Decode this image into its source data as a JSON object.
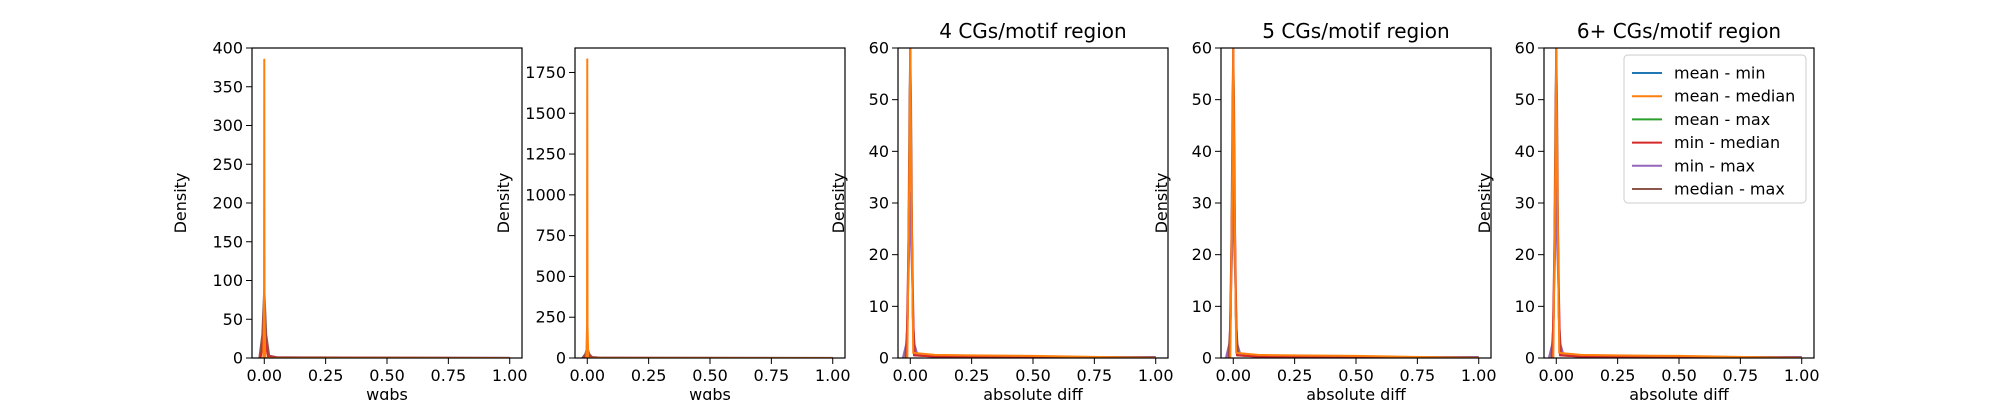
{
  "chart_data": {
    "type": "line",
    "x_ticks": [
      0.0,
      0.25,
      0.5,
      0.75,
      1.0
    ],
    "x_tick_labels": [
      "0.00",
      "0.25",
      "0.50",
      "0.75",
      "1.00"
    ],
    "ylabel": "Density",
    "legend": {
      "placement": "top-right of last panel",
      "entries": [
        "mean - min",
        "mean - median",
        "mean - max",
        "min - median",
        "min - max",
        "median - max"
      ]
    },
    "series_colors": {
      "mean - min": "#1f77b4",
      "mean - median": "#ff7f0e",
      "mean - max": "#2ca02c",
      "min - median": "#d62728",
      "min - max": "#9467bd",
      "median - max": "#8c564b"
    },
    "panels": [
      {
        "title": "",
        "xlabel": "wgbs",
        "xlim": [
          -0.05,
          1.05
        ],
        "ylim": [
          0,
          400
        ],
        "y_ticks": [
          0,
          50,
          100,
          150,
          200,
          250,
          300,
          350,
          400
        ],
        "y_tick_labels": [
          "0",
          "50",
          "100",
          "150",
          "200",
          "250",
          "300",
          "350",
          "400"
        ],
        "curves": [
          {
            "series": "min - max",
            "x": [
              -0.02,
              -0.008,
              0.0,
              0.008,
              0.02,
              0.05,
              0.2,
              0.5,
              1.0
            ],
            "y": [
              0,
              20,
              60,
              20,
              3,
              1,
              0.5,
              0.3,
              0.3
            ]
          },
          {
            "series": "median - max",
            "x": [
              -0.02,
              -0.008,
              0.0,
              0.008,
              0.02,
              0.05,
              1.0
            ],
            "y": [
              0,
              30,
              90,
              30,
              3,
              1,
              0
            ]
          },
          {
            "series": "min - median",
            "x": [
              -0.015,
              -0.005,
              0.0,
              0.005,
              0.015,
              0.05,
              1.0
            ],
            "y": [
              0,
              20,
              70,
              20,
              2,
              0.5,
              0
            ]
          },
          {
            "series": "mean - median",
            "x": [
              -0.004,
              -0.001,
              0.0,
              0.001,
              0.004,
              0.05,
              1.0
            ],
            "y": [
              0,
              60,
              385,
              60,
              0,
              0,
              0
            ]
          }
        ]
      },
      {
        "title": "",
        "xlabel": "wgbs",
        "xlim": [
          -0.05,
          1.05
        ],
        "ylim": [
          0,
          1900
        ],
        "y_ticks": [
          0,
          250,
          500,
          750,
          1000,
          1250,
          1500,
          1750
        ],
        "y_tick_labels": [
          "0",
          "250",
          "500",
          "750",
          "1000",
          "1250",
          "1500",
          "1750"
        ],
        "curves": [
          {
            "series": "min - max",
            "x": [
              -0.02,
              -0.008,
              0.0,
              0.008,
              0.02,
              0.05,
              0.2,
              0.5,
              1.0
            ],
            "y": [
              0,
              20,
              50,
              20,
              5,
              2,
              1,
              0.5,
              0.5
            ]
          },
          {
            "series": "median - max",
            "x": [
              -0.02,
              -0.008,
              0.0,
              0.008,
              0.02,
              0.05,
              1.0
            ],
            "y": [
              0,
              25,
              65,
              25,
              5,
              2,
              0
            ]
          },
          {
            "series": "min - median",
            "x": [
              -0.015,
              -0.005,
              0.0,
              0.005,
              0.015,
              0.05,
              1.0
            ],
            "y": [
              0,
              15,
              45,
              15,
              2,
              0.5,
              0
            ]
          },
          {
            "series": "mean - median",
            "x": [
              -0.004,
              -0.001,
              0.0,
              0.001,
              0.004,
              0.05,
              1.0
            ],
            "y": [
              0,
              200,
              1830,
              200,
              0,
              0,
              0
            ]
          }
        ]
      },
      {
        "title": "4 CGs/motif region",
        "xlabel": "absolute diff",
        "xlim": [
          -0.05,
          1.05
        ],
        "ylim": [
          0,
          60
        ],
        "y_ticks": [
          0,
          10,
          20,
          30,
          40,
          50,
          60
        ],
        "y_tick_labels": [
          "0",
          "10",
          "20",
          "30",
          "40",
          "50",
          "60"
        ],
        "curves": [
          {
            "series": "min - max",
            "x": [
              -0.03,
              -0.015,
              -0.005,
              0.0,
              0.005,
              0.015,
              0.03,
              0.1,
              0.3,
              0.5,
              1.0
            ],
            "y": [
              0,
              3,
              20,
              32,
              20,
              3,
              0.5,
              0.3,
              0.2,
              0.2,
              0.2
            ]
          },
          {
            "series": "median - max",
            "x": [
              -0.02,
              -0.01,
              -0.003,
              0.0,
              0.003,
              0.01,
              0.02,
              0.1,
              1.0
            ],
            "y": [
              0,
              8,
              50,
              60,
              50,
              8,
              0.5,
              0.3,
              0.1
            ]
          },
          {
            "series": "min - median",
            "x": [
              -0.015,
              -0.005,
              0.0,
              0.005,
              0.015,
              0.1,
              1.0
            ],
            "y": [
              0,
              30,
              60,
              30,
              0.5,
              0.3,
              0
            ]
          },
          {
            "series": "mean - median",
            "x": [
              -0.012,
              -0.004,
              0.0,
              0.004,
              0.012,
              0.1,
              0.25,
              0.5,
              1.0
            ],
            "y": [
              0,
              35,
              60,
              35,
              1,
              0.6,
              0.5,
              0.4,
              0
            ]
          }
        ]
      },
      {
        "title": "5 CGs/motif region",
        "xlabel": "absolute diff",
        "xlim": [
          -0.05,
          1.05
        ],
        "ylim": [
          0,
          60
        ],
        "y_ticks": [
          0,
          10,
          20,
          30,
          40,
          50,
          60
        ],
        "y_tick_labels": [
          "0",
          "10",
          "20",
          "30",
          "40",
          "50",
          "60"
        ],
        "curves": [
          {
            "series": "min - max",
            "x": [
              -0.03,
              -0.015,
              -0.005,
              0.0,
              0.005,
              0.015,
              0.03,
              0.1,
              0.3,
              0.5,
              1.0
            ],
            "y": [
              0,
              3,
              20,
              34,
              20,
              3,
              0.5,
              0.3,
              0.2,
              0.2,
              0.2
            ]
          },
          {
            "series": "median - max",
            "x": [
              -0.02,
              -0.01,
              -0.003,
              0.0,
              0.003,
              0.01,
              0.02,
              0.1,
              1.0
            ],
            "y": [
              0,
              8,
              50,
              60,
              50,
              8,
              0.5,
              0.3,
              0.1
            ]
          },
          {
            "series": "min - median",
            "x": [
              -0.015,
              -0.005,
              0.0,
              0.005,
              0.015,
              0.1,
              1.0
            ],
            "y": [
              0,
              30,
              60,
              30,
              0.5,
              0.3,
              0
            ]
          },
          {
            "series": "mean - median",
            "x": [
              -0.012,
              -0.004,
              0.0,
              0.004,
              0.012,
              0.1,
              0.25,
              0.5,
              1.0
            ],
            "y": [
              0,
              35,
              60,
              35,
              1,
              0.6,
              0.5,
              0.4,
              0
            ]
          }
        ]
      },
      {
        "title": "6+ CGs/motif region",
        "xlabel": "absolute diff",
        "xlim": [
          -0.05,
          1.05
        ],
        "ylim": [
          0,
          60
        ],
        "y_ticks": [
          0,
          10,
          20,
          30,
          40,
          50,
          60
        ],
        "y_tick_labels": [
          "0",
          "10",
          "20",
          "30",
          "40",
          "50",
          "60"
        ],
        "curves": [
          {
            "series": "min - max",
            "x": [
              -0.03,
              -0.015,
              -0.005,
              0.0,
              0.005,
              0.015,
              0.03,
              0.1,
              0.3,
              0.5,
              1.0
            ],
            "y": [
              0,
              3,
              20,
              34,
              20,
              3,
              0.5,
              0.3,
              0.2,
              0.2,
              0.2
            ]
          },
          {
            "series": "median - max",
            "x": [
              -0.02,
              -0.01,
              -0.003,
              0.0,
              0.003,
              0.01,
              0.02,
              0.1,
              1.0
            ],
            "y": [
              0,
              8,
              50,
              60,
              50,
              8,
              0.5,
              0.3,
              0.1
            ]
          },
          {
            "series": "min - median",
            "x": [
              -0.015,
              -0.005,
              0.0,
              0.005,
              0.015,
              0.1,
              1.0
            ],
            "y": [
              0,
              30,
              60,
              30,
              0.5,
              0.3,
              0
            ]
          },
          {
            "series": "mean - median",
            "x": [
              -0.012,
              -0.004,
              0.0,
              0.004,
              0.012,
              0.1,
              0.25,
              0.5,
              1.0
            ],
            "y": [
              0,
              35,
              60,
              35,
              1,
              0.6,
              0.5,
              0.4,
              0
            ]
          }
        ]
      }
    ]
  }
}
